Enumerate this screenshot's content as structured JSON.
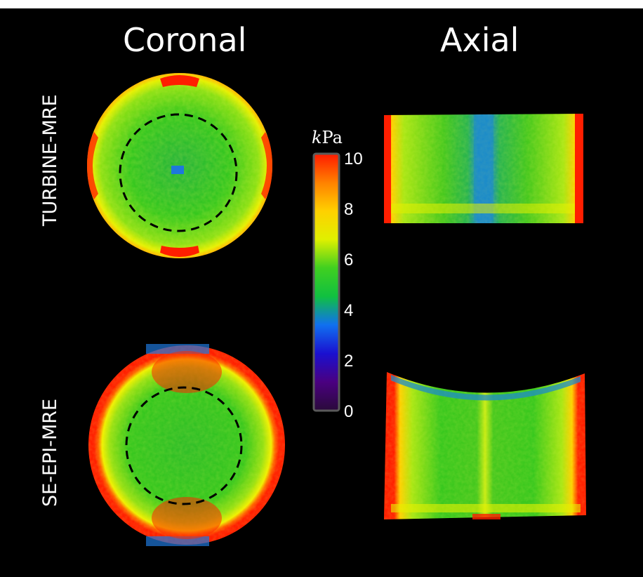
{
  "figure": {
    "column_titles": {
      "coronal": "Coronal",
      "axial": "Axial"
    },
    "row_titles": {
      "turbine": "TURBINE-MRE",
      "se_epi": "SE-EPI-MRE"
    }
  },
  "colorbar": {
    "unit_italic": "k",
    "unit_rest": "Pa",
    "ticks": [
      "10",
      "8",
      "6",
      "4",
      "2",
      "0"
    ],
    "min": 0,
    "max": 10,
    "colors": [
      "#2a0a3a",
      "#4a0080",
      "#1a10d0",
      "#1070f0",
      "#10c040",
      "#40d020",
      "#e0f000",
      "#ffd000",
      "#ff8000",
      "#ff1a00"
    ]
  },
  "maps": {
    "background_color": "#000000",
    "primary_color": "#32c81e",
    "rim_color": "#ff1e00",
    "accent_yellow": "#e6f000",
    "accent_blue": "#1e78dc",
    "roi_line_color": "#000000"
  }
}
